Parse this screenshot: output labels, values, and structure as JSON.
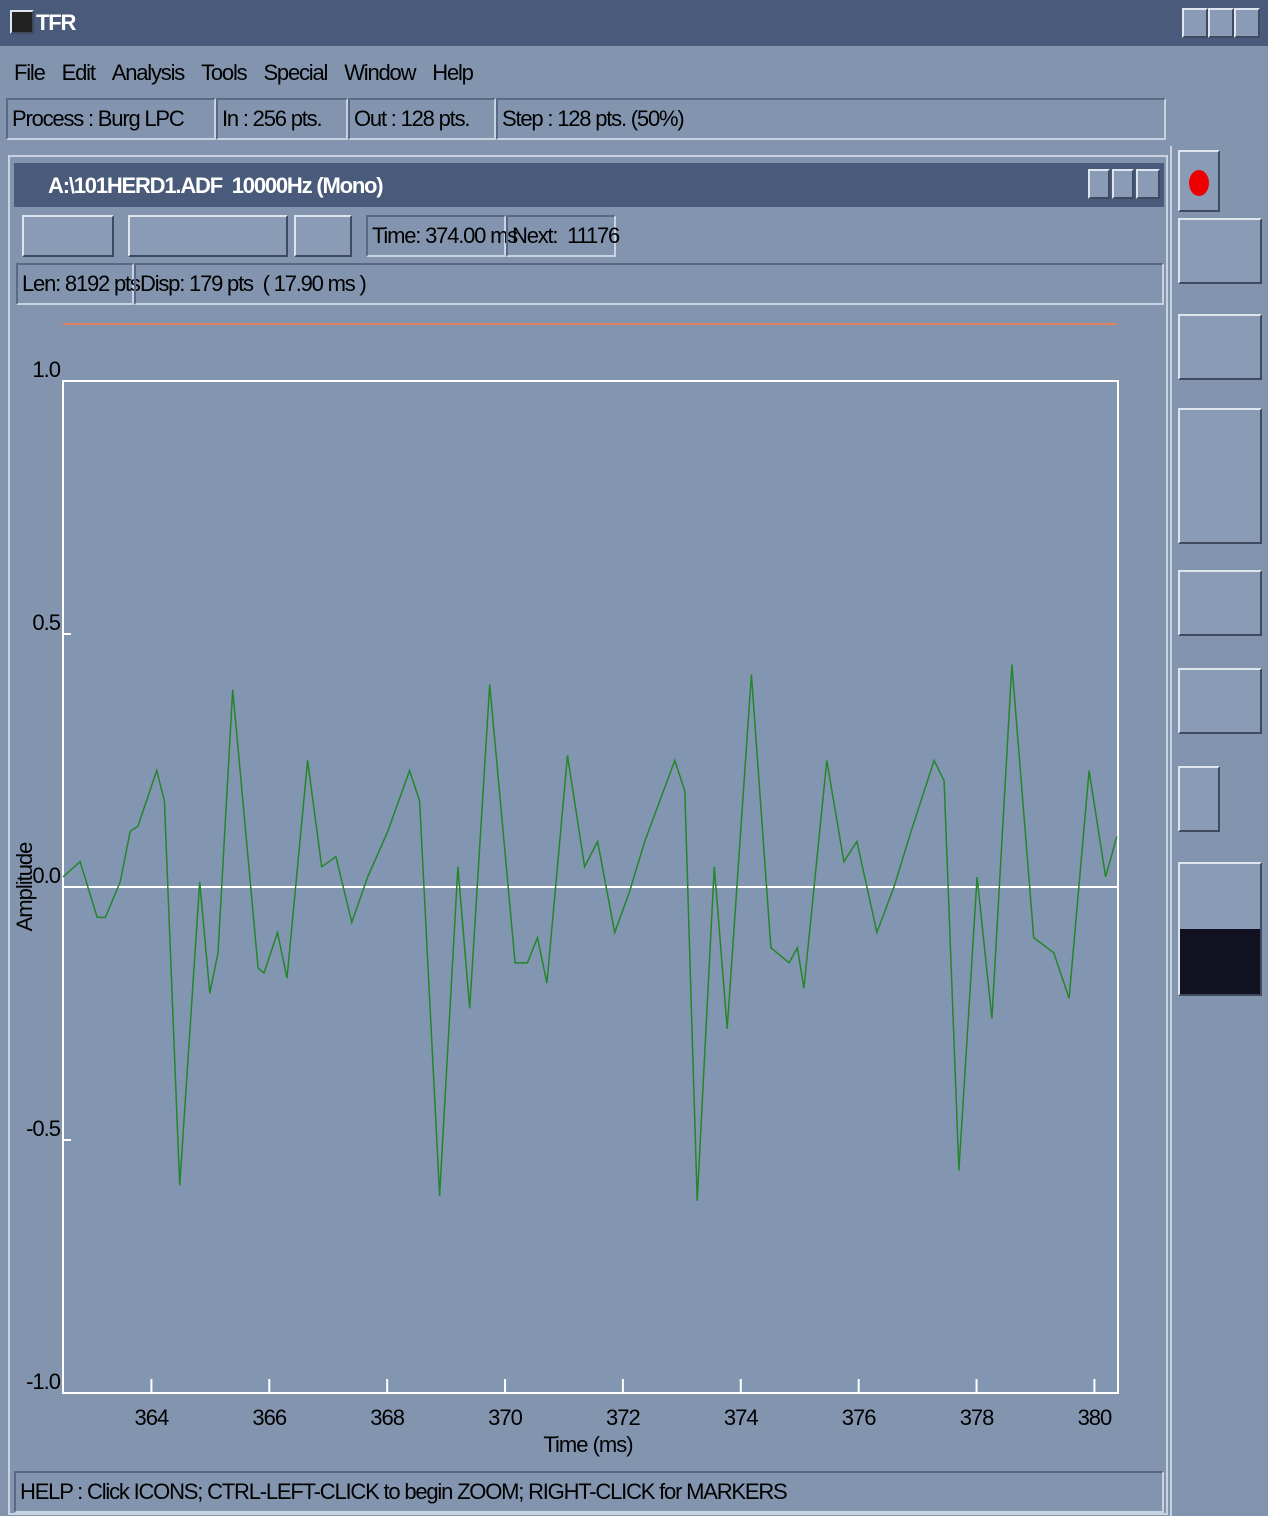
{
  "app": {
    "title": "TFR",
    "menu": [
      "File",
      "Edit",
      "Analysis",
      "Tools",
      "Special",
      "Window",
      "Help"
    ],
    "status": [
      "Process : Burg LPC",
      "In : 256 pts.",
      "Out : 128 pts.",
      "Step : 128 pts. (50%)"
    ]
  },
  "window": {
    "title": "A:\\101HERD1.ADF  10000Hz (Mono)",
    "time": "Time: 374.00 ms",
    "next": "Next:  11176",
    "len": "Len: 8192 pts",
    "disp": "Disp: 179 pts  ( 17.90 ms )"
  },
  "help": "HELP : Click ICONS; CTRL-LEFT-CLICK to begin ZOOM; RIGHT-CLICK for MARKERS",
  "chart_data": {
    "type": "line",
    "x_label": "Time (ms)",
    "y_label": "Amplitude",
    "color": "#23862b",
    "x": [
      362.5,
      362.79,
      363.08,
      363.22,
      363.47,
      363.64,
      363.77,
      364.09,
      364.22,
      364.48,
      364.82,
      364.99,
      365.13,
      365.38,
      365.81,
      365.91,
      366.14,
      366.3,
      366.65,
      366.89,
      367.13,
      367.4,
      367.67,
      368.01,
      368.38,
      368.55,
      368.89,
      369.2,
      369.4,
      369.74,
      370.17,
      370.38,
      370.55,
      370.71,
      371.06,
      371.35,
      371.57,
      371.86,
      372.11,
      372.37,
      372.88,
      373.05,
      373.26,
      373.55,
      373.77,
      374.18,
      374.51,
      374.82,
      374.96,
      375.07,
      375.46,
      375.75,
      375.97,
      376.31,
      376.6,
      376.89,
      377.28,
      377.45,
      377.7,
      378.01,
      378.26,
      378.6,
      378.97,
      379.31,
      379.57,
      379.91,
      380.19,
      380.38
    ],
    "values": [
      0.02,
      0.05,
      -0.06,
      -0.06,
      0.01,
      0.11,
      0.12,
      0.23,
      0.17,
      -0.59,
      0.01,
      -0.21,
      -0.13,
      0.39,
      -0.16,
      -0.17,
      -0.09,
      -0.18,
      0.25,
      0.04,
      0.06,
      -0.07,
      0.02,
      0.11,
      0.23,
      0.17,
      -0.61,
      0.04,
      -0.24,
      0.4,
      -0.15,
      -0.15,
      -0.1,
      -0.19,
      0.26,
      0.04,
      0.09,
      -0.09,
      -0.01,
      0.09,
      0.25,
      0.19,
      -0.62,
      0.04,
      -0.28,
      0.42,
      -0.12,
      -0.15,
      -0.12,
      -0.2,
      0.25,
      0.05,
      0.09,
      -0.09,
      0,
      0.11,
      0.25,
      0.21,
      -0.56,
      0.02,
      -0.26,
      0.44,
      -0.1,
      -0.13,
      -0.22,
      0.23,
      0.02,
      0.1
    ],
    "xlim": [
      362.5,
      380.4
    ],
    "ylim": [
      -1,
      1
    ],
    "xticks": [
      364,
      366,
      368,
      370,
      372,
      374,
      376,
      378,
      380
    ],
    "yticks": [
      {
        "value": -1,
        "label": "-1.0"
      },
      {
        "value": -0.5,
        "label": "-0.5"
      },
      {
        "value": 0,
        "label": "0.0"
      },
      {
        "value": 0.5,
        "label": "0.5"
      },
      {
        "value": 1,
        "label": "1.0"
      }
    ]
  }
}
